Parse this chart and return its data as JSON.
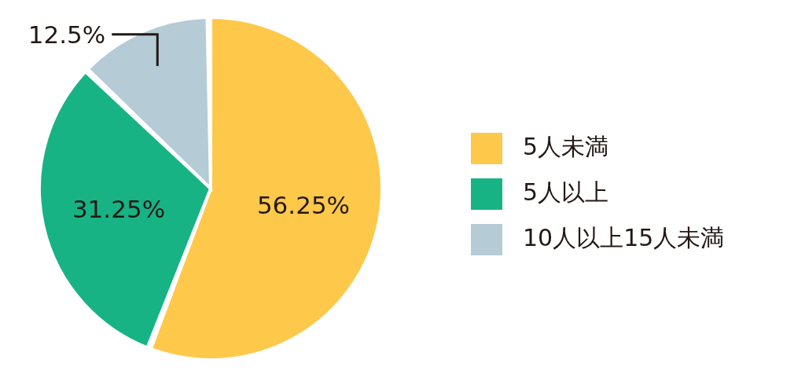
{
  "chart_data": {
    "type": "pie",
    "categories": [
      "5人未満",
      "5人以上",
      "10人以上15人未満"
    ],
    "values": [
      56.25,
      31.25,
      12.5
    ],
    "colors": [
      "#fec84a",
      "#17b384",
      "#b5cbd6"
    ],
    "value_labels": [
      "56.25%",
      "31.25%",
      "12.5%"
    ],
    "legend": "right"
  }
}
